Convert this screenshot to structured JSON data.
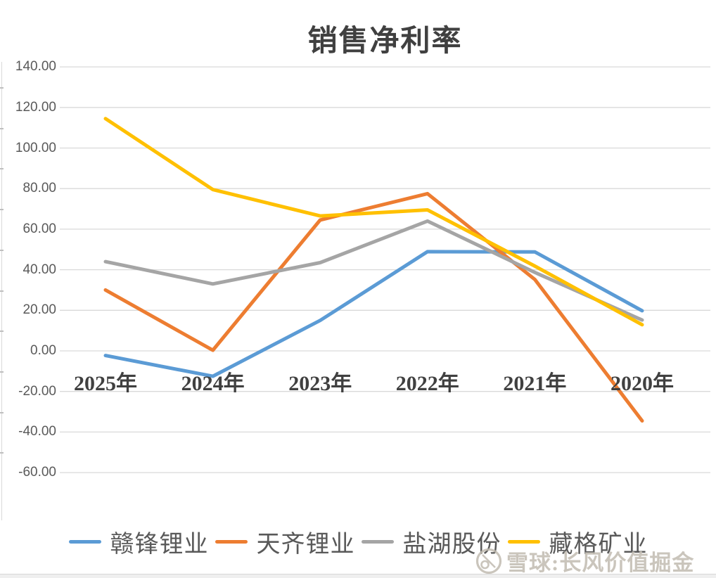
{
  "chart_data": {
    "type": "line",
    "title": "销售净利率",
    "categories": [
      "2025年",
      "2024年",
      "2023年",
      "2022年",
      "2021年",
      "2020年"
    ],
    "series": [
      {
        "name": "赣锋锂业",
        "color": "#5B9BD5",
        "values": [
          -2.3,
          -12.5,
          15.0,
          48.9,
          48.8,
          19.8
        ]
      },
      {
        "name": "天齐锂业",
        "color": "#ED7D31",
        "values": [
          30.0,
          0.3,
          64.5,
          77.5,
          35.2,
          -34.5
        ]
      },
      {
        "name": "盐湖股份",
        "color": "#A5A5A5",
        "values": [
          44.0,
          33.0,
          43.5,
          64.0,
          38.7,
          15.2
        ]
      },
      {
        "name": "藏格矿业",
        "color": "#FFC000",
        "values": [
          114.5,
          79.5,
          66.5,
          69.5,
          41.8,
          12.9
        ]
      }
    ],
    "y_axis": {
      "min": -60,
      "max": 140,
      "step": 20
    },
    "y_ticks": [
      "140.00",
      "120.00",
      "100.00",
      "80.00",
      "60.00",
      "40.00",
      "20.00",
      "0.00",
      "-20.00",
      "-40.00",
      "-60.00"
    ],
    "grid": true,
    "gridline_color": "#D9D9D9",
    "legend_position": "bottom"
  },
  "watermark": {
    "logo": "xueqiu-snowball-logo",
    "text": "雪球:长风价值掘金"
  }
}
